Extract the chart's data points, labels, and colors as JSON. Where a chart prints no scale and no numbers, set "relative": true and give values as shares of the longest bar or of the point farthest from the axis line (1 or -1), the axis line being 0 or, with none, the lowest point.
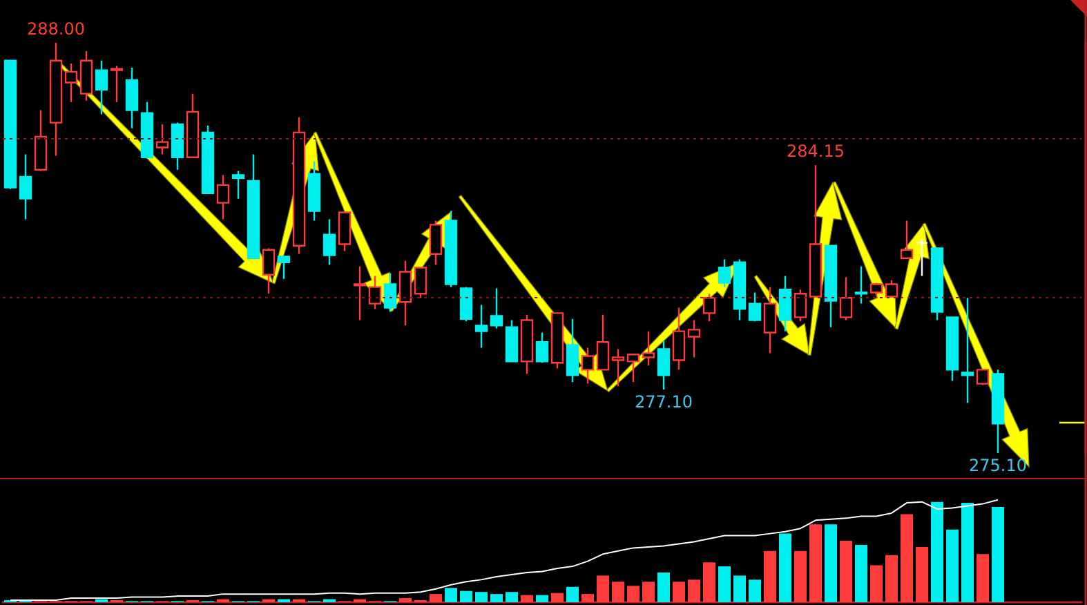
{
  "chart_data": [
    {
      "type": "candlestick",
      "categories": [
        null,
        null,
        null,
        null,
        null,
        null,
        null,
        null,
        null,
        null,
        null,
        null,
        null,
        null,
        null,
        null,
        null,
        null,
        null,
        null,
        null,
        null,
        null,
        null,
        null,
        null,
        null,
        null,
        null,
        null,
        null,
        null,
        null,
        null,
        null,
        null,
        null,
        null,
        null,
        null,
        null,
        null,
        null,
        null,
        null,
        null,
        null,
        null,
        null,
        null,
        null,
        null,
        null,
        null,
        null,
        null,
        null,
        null,
        null,
        null,
        null,
        null,
        null,
        null,
        null,
        null
      ],
      "ohlc": [
        [
          287.44,
          287.44,
          283.4,
          283.45
        ],
        [
          283.79,
          284.49,
          282.45,
          283.1
        ],
        [
          284.01,
          285.88,
          283.97,
          285.05
        ],
        [
          285.49,
          288.0,
          284.45,
          287.44
        ],
        [
          286.75,
          287.35,
          286.14,
          287.09
        ],
        [
          286.4,
          287.74,
          286.18,
          287.44
        ],
        [
          287.14,
          287.44,
          285.75,
          286.53
        ],
        [
          287.14,
          287.27,
          286.14,
          287.18
        ],
        [
          286.83,
          287.22,
          285.31,
          285.88
        ],
        [
          285.79,
          286.14,
          284.36,
          284.4
        ],
        [
          284.71,
          285.44,
          284.49,
          284.88
        ],
        [
          285.44,
          285.49,
          284.01,
          284.4
        ],
        [
          284.4,
          286.4,
          284.4,
          285.83
        ],
        [
          285.18,
          285.4,
          283.27,
          283.27
        ],
        [
          282.97,
          283.84,
          282.45,
          283.53
        ],
        [
          283.84,
          283.97,
          283.1,
          283.75
        ],
        [
          283.66,
          284.49,
          281.23,
          281.23
        ],
        [
          280.71,
          281.54,
          280.11,
          281.49
        ],
        [
          281.28,
          281.28,
          280.58,
          281.1
        ],
        [
          281.62,
          285.66,
          281.36,
          285.18
        ],
        [
          283.88,
          284.27,
          282.41,
          282.71
        ],
        [
          281.97,
          282.45,
          281.02,
          281.32
        ],
        [
          281.67,
          282.67,
          281.45,
          282.67
        ],
        [
          280.37,
          280.97,
          279.28,
          280.41
        ],
        [
          279.8,
          280.67,
          279.63,
          280.32
        ],
        [
          280.41,
          280.76,
          279.54,
          279.67
        ],
        [
          279.85,
          281.15,
          279.11,
          280.8
        ],
        [
          280.11,
          280.93,
          279.98,
          280.93
        ],
        [
          281.36,
          282.41,
          281.02,
          282.28
        ],
        [
          282.41,
          282.71,
          280.32,
          280.41
        ],
        [
          280.28,
          280.32,
          279.24,
          279.32
        ],
        [
          279.11,
          279.76,
          278.41,
          278.93
        ],
        [
          279.41,
          280.28,
          279.02,
          279.11
        ],
        [
          279.06,
          279.28,
          277.98,
          277.98
        ],
        [
          277.98,
          279.45,
          277.59,
          279.28
        ],
        [
          278.59,
          278.89,
          277.94,
          277.98
        ],
        [
          277.94,
          279.5,
          277.76,
          279.5
        ],
        [
          278.5,
          279.32,
          277.33,
          277.55
        ],
        [
          277.72,
          278.41,
          277.29,
          278.15
        ],
        [
          277.72,
          279.45,
          277.72,
          278.59
        ],
        [
          278.02,
          278.37,
          277.2,
          278.11
        ],
        [
          277.98,
          278.2,
          277.33,
          278.2
        ],
        [
          278.11,
          278.93,
          277.85,
          278.24
        ],
        [
          278.37,
          278.63,
          277.1,
          277.55
        ],
        [
          278.02,
          279.67,
          277.72,
          278.93
        ],
        [
          278.76,
          279.28,
          278.11,
          278.98
        ],
        [
          279.5,
          280.11,
          279.24,
          279.98
        ],
        [
          280.93,
          281.19,
          280.32,
          280.45
        ],
        [
          281.1,
          281.19,
          279.28,
          279.63
        ],
        [
          279.8,
          280.15,
          279.24,
          279.28
        ],
        [
          278.89,
          280.32,
          278.24,
          279.8
        ],
        [
          280.24,
          280.67,
          278.93,
          279.28
        ],
        [
          279.37,
          280.24,
          279.24,
          280.11
        ],
        [
          280.02,
          284.15,
          280.02,
          281.67
        ],
        [
          281.62,
          281.62,
          279.06,
          279.89
        ],
        [
          279.37,
          280.63,
          279.28,
          279.98
        ],
        [
          280.15,
          280.97,
          279.8,
          280.11
        ],
        [
          280.15,
          280.45,
          280.02,
          280.41
        ],
        [
          280.02,
          280.54,
          280.02,
          280.41
        ],
        [
          281.23,
          282.41,
          281.23,
          281.49
        ],
        [
          281.71,
          281.84,
          280.67,
          281.71
        ],
        [
          281.54,
          281.54,
          279.28,
          279.54
        ],
        [
          279.37,
          279.37,
          277.37,
          277.72
        ],
        [
          277.63,
          279.98,
          276.68,
          277.55
        ],
        [
          277.28,
          277.72,
          277.24,
          277.72
        ],
        [
          277.59,
          277.72,
          275.1,
          276.03
        ]
      ],
      "colors": [
        "#00f0f0",
        "#00f0f0",
        "#ff3b3b",
        "#ff3b3b",
        "#ff3b3b",
        "#ff3b3b",
        "#00f0f0",
        "#ff3b3b",
        "#00f0f0",
        "#00f0f0",
        "#ff3b3b",
        "#00f0f0",
        "#ff3b3b",
        "#00f0f0",
        "#ff3b3b",
        "#00f0f0",
        "#00f0f0",
        "#ff3b3b",
        "#00f0f0",
        "#ff3b3b",
        "#00f0f0",
        "#00f0f0",
        "#ff3b3b",
        "#ff3b3b",
        "#ff3b3b",
        "#00f0f0",
        "#ff3b3b",
        "#ff3b3b",
        "#ff3b3b",
        "#00f0f0",
        "#00f0f0",
        "#00f0f0",
        "#00f0f0",
        "#00f0f0",
        "#ff3b3b",
        "#00f0f0",
        "#ff3b3b",
        "#00f0f0",
        "#ff3b3b",
        "#ff3b3b",
        "#ff3b3b",
        "#ff3b3b",
        "#ff3b3b",
        "#00f0f0",
        "#ff3b3b",
        "#ff3b3b",
        "#ff3b3b",
        "#00f0f0",
        "#00f0f0",
        "#00f0f0",
        "#ff3b3b",
        "#00f0f0",
        "#ff3b3b",
        "#ff3b3b",
        "#00f0f0",
        "#ff3b3b",
        "#00f0f0",
        "#ff3b3b",
        "#ff3b3b",
        "#ff3b3b",
        "#ffffff",
        "#00f0f0",
        "#00f0f0",
        "#00f0f0",
        "#ff3b3b",
        "#00f0f0"
      ],
      "yticks": [
        {
          "value": 280,
          "label": null
        },
        {
          "value": 285,
          "label": null
        }
      ],
      "grid": "y",
      "tick_labels": false,
      "annotations": [
        {
          "text": "288.00",
          "y": 288.0
        },
        {
          "text": "277.10",
          "y": 277.1
        },
        {
          "text": "284.15",
          "y": 284.15
        },
        {
          "text": "275.10",
          "y": 275.1
        }
      ]
    },
    {
      "type": "bar",
      "relative": true,
      "categories": [
        null,
        null,
        null,
        null,
        null,
        null,
        null,
        null,
        null,
        null,
        null,
        null,
        null,
        null,
        null,
        null,
        null,
        null,
        null,
        null,
        null,
        null,
        null,
        null,
        null,
        null,
        null,
        null,
        null,
        null,
        null,
        null,
        null,
        null,
        null,
        null,
        null,
        null,
        null,
        null,
        null,
        null,
        null,
        null,
        null,
        null,
        null,
        null,
        null,
        null,
        null,
        null,
        null,
        null,
        null,
        null,
        null,
        null,
        null,
        null,
        null,
        null,
        null,
        null,
        null,
        null
      ],
      "series": [
        {
          "type": "bar",
          "colors": [
            "#00f0f0",
            "#00f0f0",
            "#ff3b3b",
            "#ff3b3b",
            "#ff3b3b",
            "#ff3b3b",
            "#00f0f0",
            "#ff3b3b",
            "#00f0f0",
            "#00f0f0",
            "#ff3b3b",
            "#00f0f0",
            "#ff3b3b",
            "#00f0f0",
            "#ff3b3b",
            "#00f0f0",
            "#00f0f0",
            "#ff3b3b",
            "#00f0f0",
            "#ff3b3b",
            "#00f0f0",
            "#00f0f0",
            "#ff3b3b",
            "#ff3b3b",
            "#ff3b3b",
            "#00f0f0",
            "#ff3b3b",
            "#ff3b3b",
            "#ff3b3b",
            "#00f0f0",
            "#00f0f0",
            "#00f0f0",
            "#00f0f0",
            "#00f0f0",
            "#ff3b3b",
            "#00f0f0",
            "#ff3b3b",
            "#00f0f0",
            "#ff3b3b",
            "#ff3b3b",
            "#ff3b3b",
            "#ff3b3b",
            "#ff3b3b",
            "#00f0f0",
            "#ff3b3b",
            "#ff3b3b",
            "#ff3b3b",
            "#00f0f0",
            "#00f0f0",
            "#00f0f0",
            "#ff3b3b",
            "#00f0f0",
            "#ff3b3b",
            "#ff3b3b",
            "#00f0f0",
            "#ff3b3b",
            "#00f0f0",
            "#ff3b3b",
            "#ff3b3b",
            "#ff3b3b",
            "#ff3b3b",
            "#00f0f0",
            "#00f0f0",
            "#00f0f0",
            "#ff3b3b",
            "#00f0f0"
          ],
          "values": [
            0.02,
            0.02,
            0.01,
            0.01,
            0.01,
            0.01,
            0.03,
            0.02,
            0.01,
            0.01,
            0.01,
            0.01,
            0.02,
            0.01,
            0.03,
            0.01,
            0.01,
            0.03,
            0.03,
            0.03,
            0.01,
            0.03,
            0.01,
            0.03,
            0.01,
            0.01,
            0.04,
            0.02,
            0.08,
            0.14,
            0.11,
            0.1,
            0.08,
            0.1,
            0.07,
            0.07,
            0.09,
            0.15,
            0.08,
            0.26,
            0.2,
            0.16,
            0.2,
            0.29,
            0.2,
            0.22,
            0.39,
            0.35,
            0.26,
            0.22,
            0.5,
            0.67,
            0.5,
            0.76,
            0.76,
            0.6,
            0.56,
            0.36,
            0.46,
            0.86,
            0.54,
            0.98,
            0.71,
            0.97,
            0.47,
            0.93
          ]
        },
        {
          "type": "line",
          "color": "#ffffff",
          "values": [
            0.02,
            0.02,
            0.02,
            0.02,
            0.04,
            0.04,
            0.04,
            0.04,
            0.05,
            0.05,
            0.05,
            0.06,
            0.06,
            0.06,
            0.08,
            0.08,
            0.08,
            0.08,
            0.08,
            0.08,
            0.08,
            0.09,
            0.09,
            0.08,
            0.09,
            0.09,
            0.09,
            0.1,
            0.13,
            0.17,
            0.2,
            0.22,
            0.25,
            0.27,
            0.29,
            0.3,
            0.33,
            0.35,
            0.4,
            0.47,
            0.5,
            0.53,
            0.54,
            0.55,
            0.57,
            0.59,
            0.62,
            0.65,
            0.65,
            0.65,
            0.67,
            0.69,
            0.72,
            0.8,
            0.81,
            0.82,
            0.84,
            0.84,
            0.87,
            0.97,
            0.98,
            0.91,
            0.92,
            0.94,
            0.96,
            1
          ]
        }
      ]
    }
  ]
}
